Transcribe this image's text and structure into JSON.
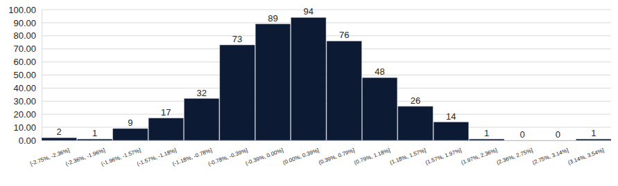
{
  "chart_data": {
    "type": "bar",
    "categories": [
      "[-2.75%, -2.36%]",
      "(-2.36%, -1.96%]",
      "(-1.96%, -1.57%]",
      "(-1.57%, -1.18%]",
      "(-1.18%, -0.78%]",
      "(-0.78%, -0.39%]",
      "(-0.39%, 0.00%]",
      "(0.00%, 0.39%]",
      "(0.39%, 0.79%]",
      "(0.79%, 1.18%]",
      "(1.18%, 1.57%]",
      "(1.57%, 1.97%]",
      "(1.97%, 2.36%]",
      "(2.36%, 2.75%]",
      "(2.75%, 3.14%]",
      "(3.14%, 3.54%]"
    ],
    "values": [
      2,
      1,
      9,
      17,
      32,
      73,
      89,
      94,
      76,
      48,
      26,
      14,
      1,
      0,
      0,
      1
    ],
    "color": "#0d1a33",
    "ylim": [
      0,
      100
    ],
    "yticks": [
      {
        "value": 0,
        "label": "0.00"
      },
      {
        "value": 10,
        "label": "10.00"
      },
      {
        "value": 20,
        "label": "20.00"
      },
      {
        "value": 30,
        "label": "30.00"
      },
      {
        "value": 40,
        "label": "40.00"
      },
      {
        "value": 50,
        "label": "50.00"
      },
      {
        "value": 60,
        "label": "60.00"
      },
      {
        "value": 70,
        "label": "70.00"
      },
      {
        "value": 80,
        "label": "80.00"
      },
      {
        "value": 90,
        "label": "90.00"
      },
      {
        "value": 100,
        "label": "100.00"
      }
    ],
    "grid": true,
    "data_labels": true
  }
}
